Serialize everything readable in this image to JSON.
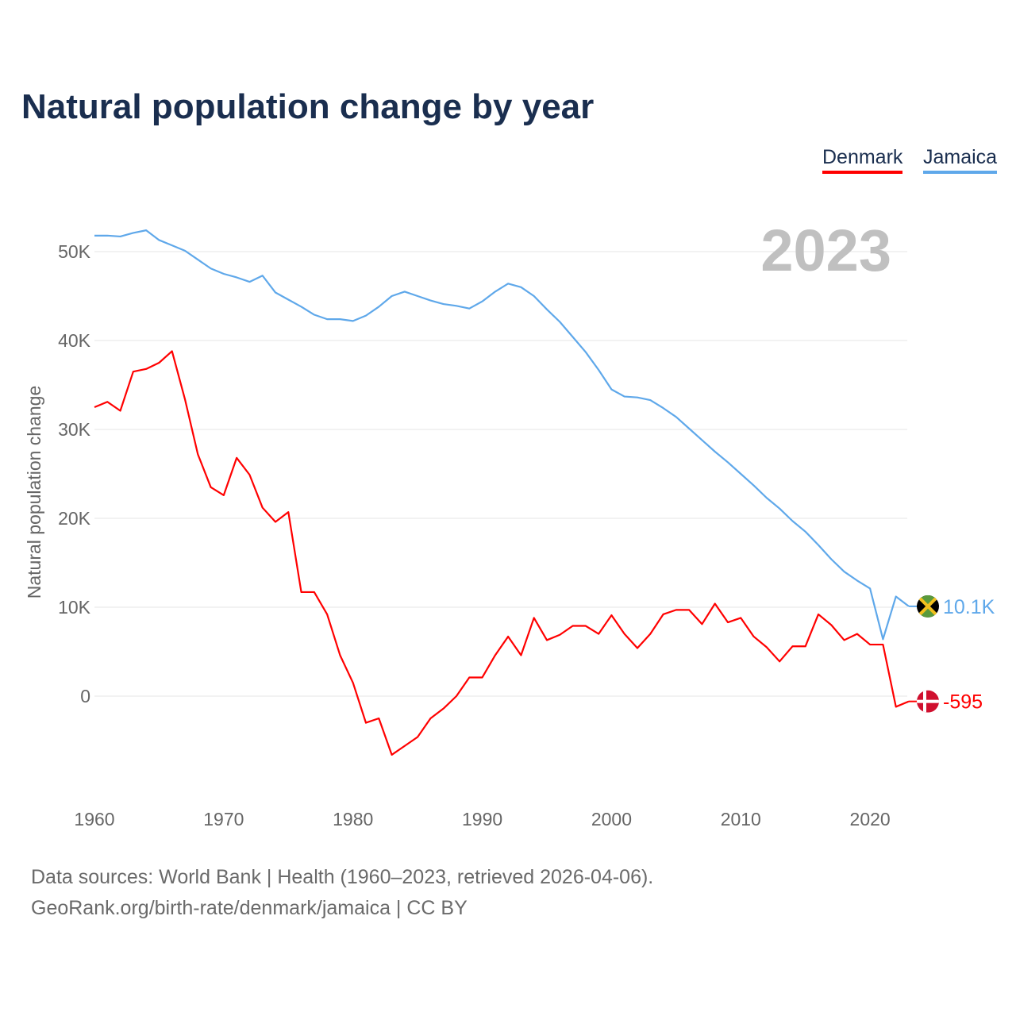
{
  "chart_data": {
    "type": "line",
    "title": "Natural population change by year",
    "xlabel": "",
    "ylabel": "Natural population change",
    "xlim": [
      1960,
      2023
    ],
    "ylim": [
      -12000,
      55000
    ],
    "x_ticks": [
      1960,
      1970,
      1980,
      1990,
      2000,
      2010,
      2020
    ],
    "x_tick_labels": [
      "1960",
      "1970",
      "1980",
      "1990",
      "2000",
      "2010",
      "2020"
    ],
    "y_ticks": [
      0,
      10000,
      20000,
      30000,
      40000,
      50000
    ],
    "y_tick_labels": [
      "0",
      "10K",
      "20K",
      "30K",
      "40K",
      "50K"
    ],
    "grid": true,
    "legend_placement": "top-right",
    "year_label": "2023",
    "x": [
      1960,
      1961,
      1962,
      1963,
      1964,
      1965,
      1966,
      1967,
      1968,
      1969,
      1970,
      1971,
      1972,
      1973,
      1974,
      1975,
      1976,
      1977,
      1978,
      1979,
      1980,
      1981,
      1982,
      1983,
      1984,
      1985,
      1986,
      1987,
      1988,
      1989,
      1990,
      1991,
      1992,
      1993,
      1994,
      1995,
      1996,
      1997,
      1998,
      1999,
      2000,
      2001,
      2002,
      2003,
      2004,
      2005,
      2006,
      2007,
      2008,
      2009,
      2010,
      2011,
      2012,
      2013,
      2014,
      2015,
      2016,
      2017,
      2018,
      2019,
      2020,
      2021,
      2022,
      2023
    ],
    "series": [
      {
        "name": "Denmark",
        "color": "#ff0000",
        "end_label": "-595",
        "flag": "denmark-flag",
        "values": [
          32500,
          33100,
          32100,
          36500,
          36800,
          37500,
          38800,
          33400,
          27200,
          23500,
          22600,
          26800,
          24900,
          21200,
          19600,
          20700,
          11700,
          11700,
          9200,
          4600,
          1500,
          -3000,
          -2500,
          -6600,
          -5600,
          -4600,
          -2500,
          -1400,
          0,
          2100,
          2100,
          4600,
          6700,
          4600,
          8800,
          6300,
          6900,
          7900,
          7900,
          7000,
          9100,
          7000,
          5400,
          7000,
          9200,
          9700,
          9700,
          8100,
          10400,
          8300,
          8800,
          6700,
          5500,
          3900,
          5600,
          5600,
          9200,
          8000,
          6300,
          7000,
          5800,
          5800,
          -1200,
          -595
        ]
      },
      {
        "name": "Jamaica",
        "color": "#5fa8ea",
        "end_label": "10.1K",
        "flag": "jamaica-flag",
        "values": [
          51800,
          51800,
          51700,
          52100,
          52400,
          51300,
          50700,
          50100,
          49100,
          48100,
          47500,
          47100,
          46600,
          47300,
          45400,
          44600,
          43800,
          42900,
          42400,
          42400,
          42200,
          42800,
          43800,
          45000,
          45500,
          45000,
          44500,
          44100,
          43900,
          43600,
          44400,
          45500,
          46400,
          46000,
          45000,
          43500,
          42100,
          40400,
          38700,
          36700,
          34500,
          33700,
          33600,
          33300,
          32400,
          31400,
          30100,
          28800,
          27500,
          26300,
          25000,
          23700,
          22300,
          21100,
          19700,
          18500,
          17000,
          15400,
          14000,
          13000,
          12100,
          6400,
          11200,
          10100
        ]
      }
    ]
  },
  "footer": {
    "line1": "Data sources: World Bank | Health (1960–2023, retrieved 2026-04-06).",
    "line2": "GeoRank.org/birth-rate/denmark/jamaica | CC BY"
  }
}
